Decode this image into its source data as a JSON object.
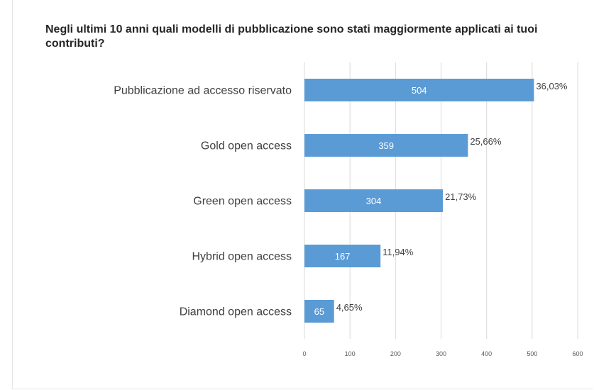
{
  "chart_data": {
    "type": "bar",
    "orientation": "horizontal",
    "title": "Negli ultimi 10 anni quali modelli di pubblicazione sono stati maggiormente applicati ai tuoi contributi?",
    "categories": [
      "Pubblicazione ad accesso riservato",
      "Gold open access",
      "Green open access",
      "Hybrid open access",
      "Diamond open access"
    ],
    "values": [
      504,
      359,
      304,
      167,
      65
    ],
    "percent_labels": [
      "36,03%",
      "25,66%",
      "21,73%",
      "11,94%",
      "4,65%"
    ],
    "xlim": [
      0,
      600
    ],
    "xticks": [
      0,
      100,
      200,
      300,
      400,
      500,
      600
    ],
    "grid": true,
    "colors": {
      "bar": "#5b9bd5",
      "grid": "#d9d9d9"
    }
  }
}
